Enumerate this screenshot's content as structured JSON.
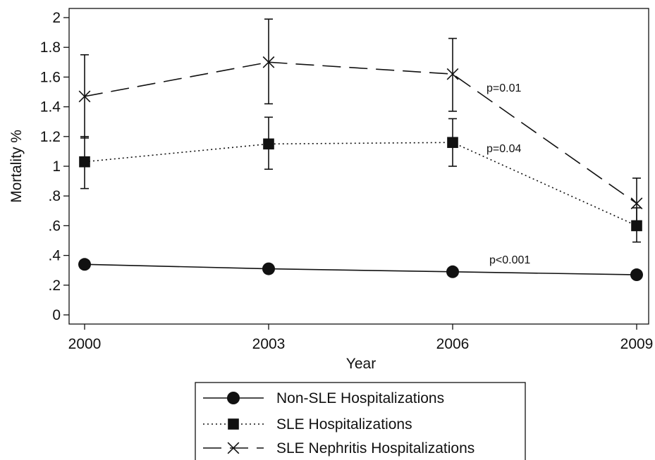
{
  "chart_data": {
    "type": "line",
    "title": "",
    "xlabel": "Year",
    "ylabel": "Mortality %",
    "x": [
      2000,
      2003,
      2006,
      2009
    ],
    "x_tick_labels": [
      "2000",
      "2003",
      "2006",
      "2009"
    ],
    "ylim": [
      0,
      2
    ],
    "y_ticks": [
      0,
      0.2,
      0.4,
      0.6,
      0.8,
      1,
      1.2,
      1.4,
      1.6,
      1.8,
      2
    ],
    "y_tick_labels": [
      "0",
      ".2",
      ".4",
      ".6",
      ".8",
      "1",
      "1.2",
      "1.4",
      "1.6",
      "1.8",
      "2"
    ],
    "grid": false,
    "legend_position": "bottom",
    "series": [
      {
        "name": "Non-SLE Hospitalizations",
        "values": [
          0.34,
          0.31,
          0.29,
          0.27
        ],
        "marker": "circle",
        "line_style": "solid",
        "annotation": "p<0.001"
      },
      {
        "name": "SLE Hospitalizations",
        "values": [
          1.03,
          1.15,
          1.16,
          0.6
        ],
        "error_low": [
          0.85,
          0.98,
          1.0,
          0.49
        ],
        "error_high": [
          1.2,
          1.33,
          1.32,
          0.72
        ],
        "marker": "square",
        "line_style": "dotted",
        "annotation": "p=0.04"
      },
      {
        "name": "SLE Nephritis Hospitalizations",
        "values": [
          1.47,
          1.7,
          1.62,
          0.75
        ],
        "error_low": [
          1.19,
          1.42,
          1.37,
          0.58
        ],
        "error_high": [
          1.75,
          1.99,
          1.86,
          0.92
        ],
        "marker": "x",
        "line_style": "dashed",
        "annotation": "p=0.01"
      }
    ],
    "colors": {
      "ink": "#111111"
    }
  }
}
